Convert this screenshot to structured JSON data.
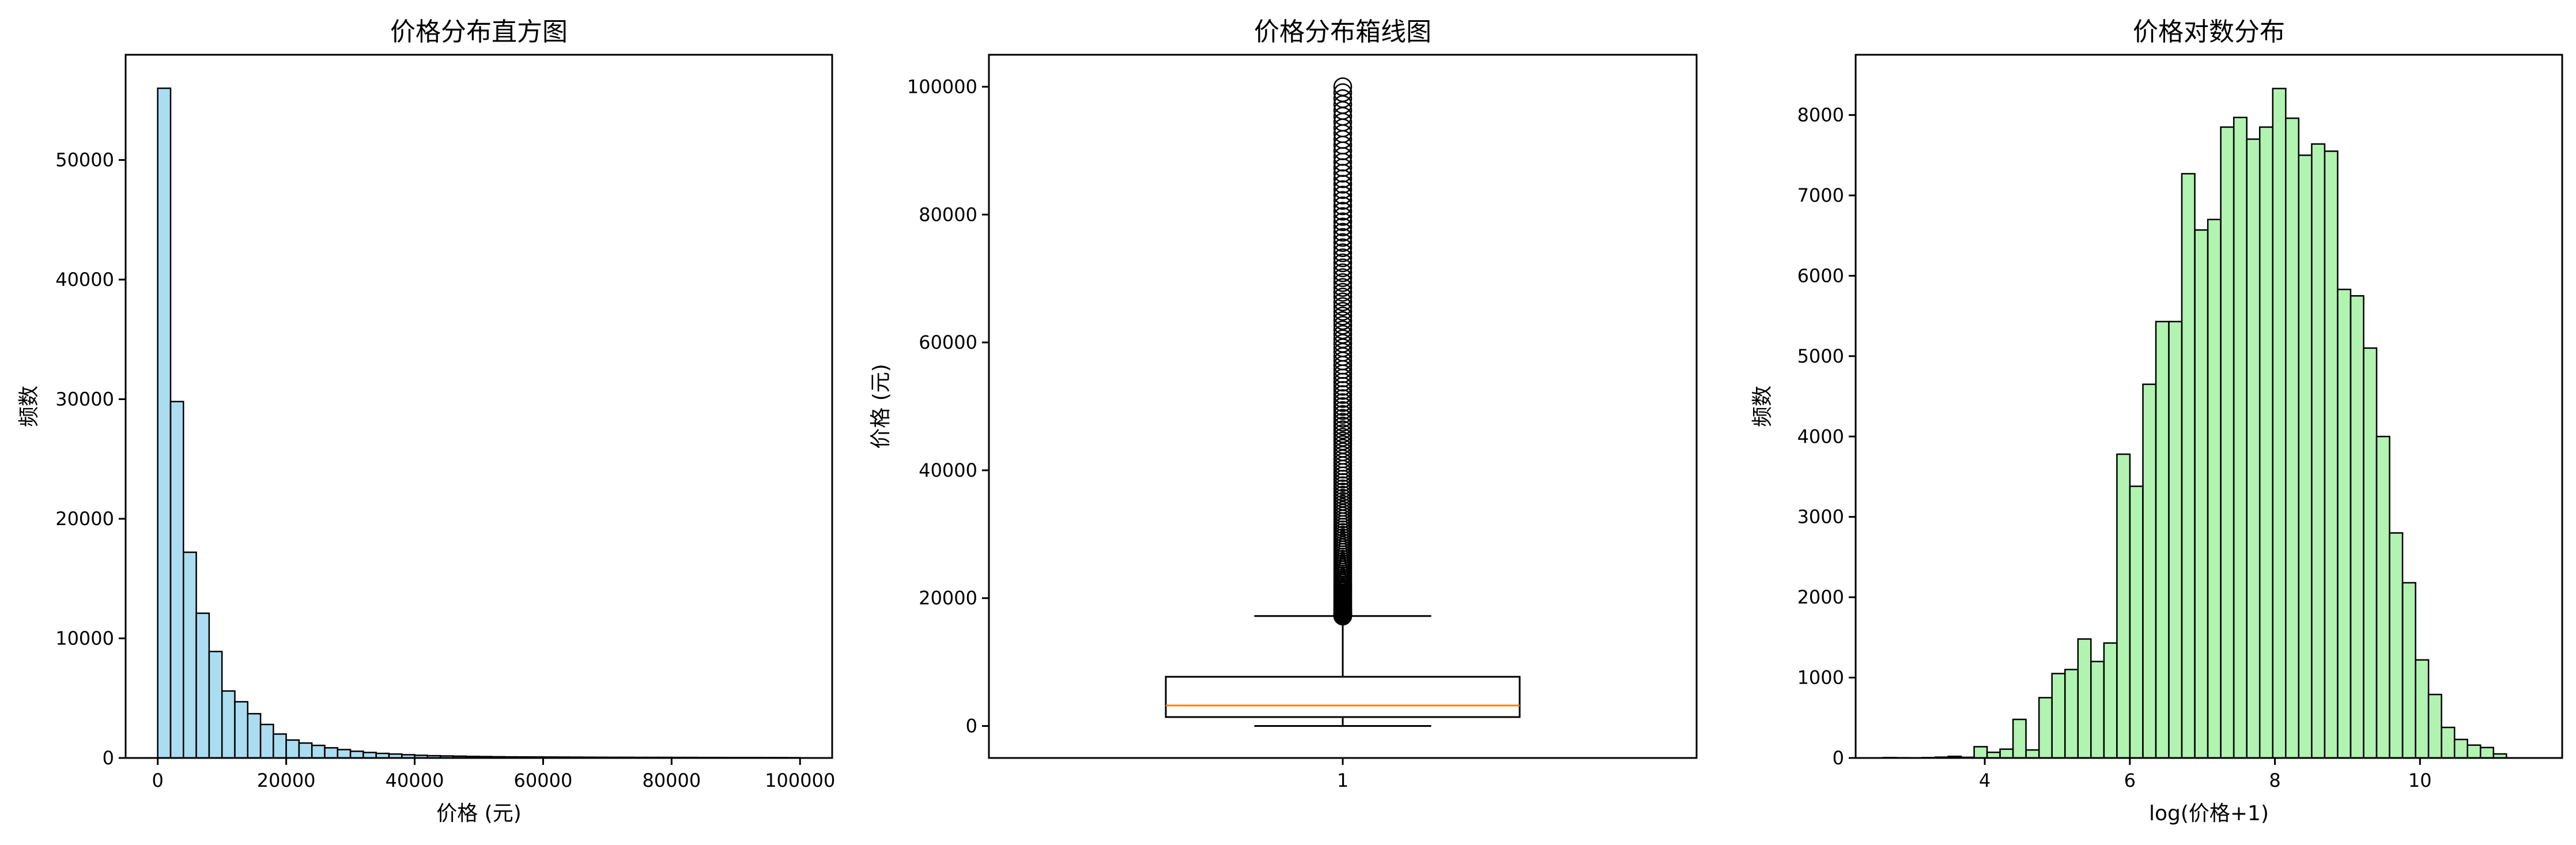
{
  "chart_data": [
    {
      "type": "bar",
      "title": "价格分布直方图",
      "xlabel": "价格 (元)",
      "ylabel": "频数",
      "xlim": [
        -5000,
        105000
      ],
      "ylim": [
        0,
        58800
      ],
      "xticks": [
        0,
        20000,
        40000,
        60000,
        80000,
        100000
      ],
      "yticks": [
        0,
        10000,
        20000,
        30000,
        40000,
        50000
      ],
      "bin_start": 0,
      "bin_width": 2000,
      "values": [
        56000,
        29800,
        17200,
        12100,
        8900,
        5600,
        4700,
        3700,
        2800,
        2000,
        1500,
        1250,
        1050,
        850,
        700,
        560,
        460,
        380,
        330,
        270,
        220,
        190,
        170,
        150,
        130,
        115,
        100,
        90,
        85,
        80,
        75,
        70,
        66,
        62,
        58,
        55,
        52,
        50,
        48,
        46,
        44,
        42,
        40,
        38,
        36,
        34,
        32,
        30,
        28,
        26
      ],
      "colors": {
        "fill": "#87ceeb",
        "edge": "#000000"
      },
      "grid": false
    },
    {
      "type": "box",
      "title": "价格分布箱线图",
      "xlabel": "",
      "ylabel": "价格 (元)",
      "categories": [
        "1"
      ],
      "ylim": [
        -5000,
        105000
      ],
      "yticks": [
        0,
        20000,
        40000,
        60000,
        80000,
        100000
      ],
      "whisker_low": 0,
      "q1": 1400,
      "median": 3200,
      "q3": 7700,
      "whisker_high": 17200,
      "outliers_range": [
        17200,
        100000
      ],
      "colors": {
        "box": "#000000",
        "median": "#ff7f0e"
      },
      "grid": false
    },
    {
      "type": "bar",
      "title": "价格对数分布",
      "xlabel": "log(价格+1)",
      "ylabel": "频数",
      "xlim": [
        2.22,
        11.96
      ],
      "ylim": [
        0,
        8750
      ],
      "xticks": [
        4,
        6,
        8,
        10
      ],
      "yticks": [
        0,
        1000,
        2000,
        3000,
        4000,
        5000,
        6000,
        7000,
        8000
      ],
      "bin_start": 2.6,
      "bin_width": 0.179,
      "values": [
        5,
        3,
        2,
        4,
        10,
        20,
        8,
        140,
        70,
        110,
        480,
        100,
        750,
        1050,
        1100,
        1480,
        1200,
        1430,
        3780,
        3380,
        4650,
        5430,
        5430,
        7270,
        6570,
        6700,
        7850,
        7970,
        7700,
        7850,
        8330,
        7960,
        7500,
        7640,
        7550,
        5830,
        5750,
        5100,
        4000,
        2800,
        2180,
        1220,
        790,
        380,
        230,
        160,
        130,
        50
      ],
      "colors": {
        "fill": "#90ee90",
        "edge": "#000000"
      },
      "grid": false
    }
  ]
}
